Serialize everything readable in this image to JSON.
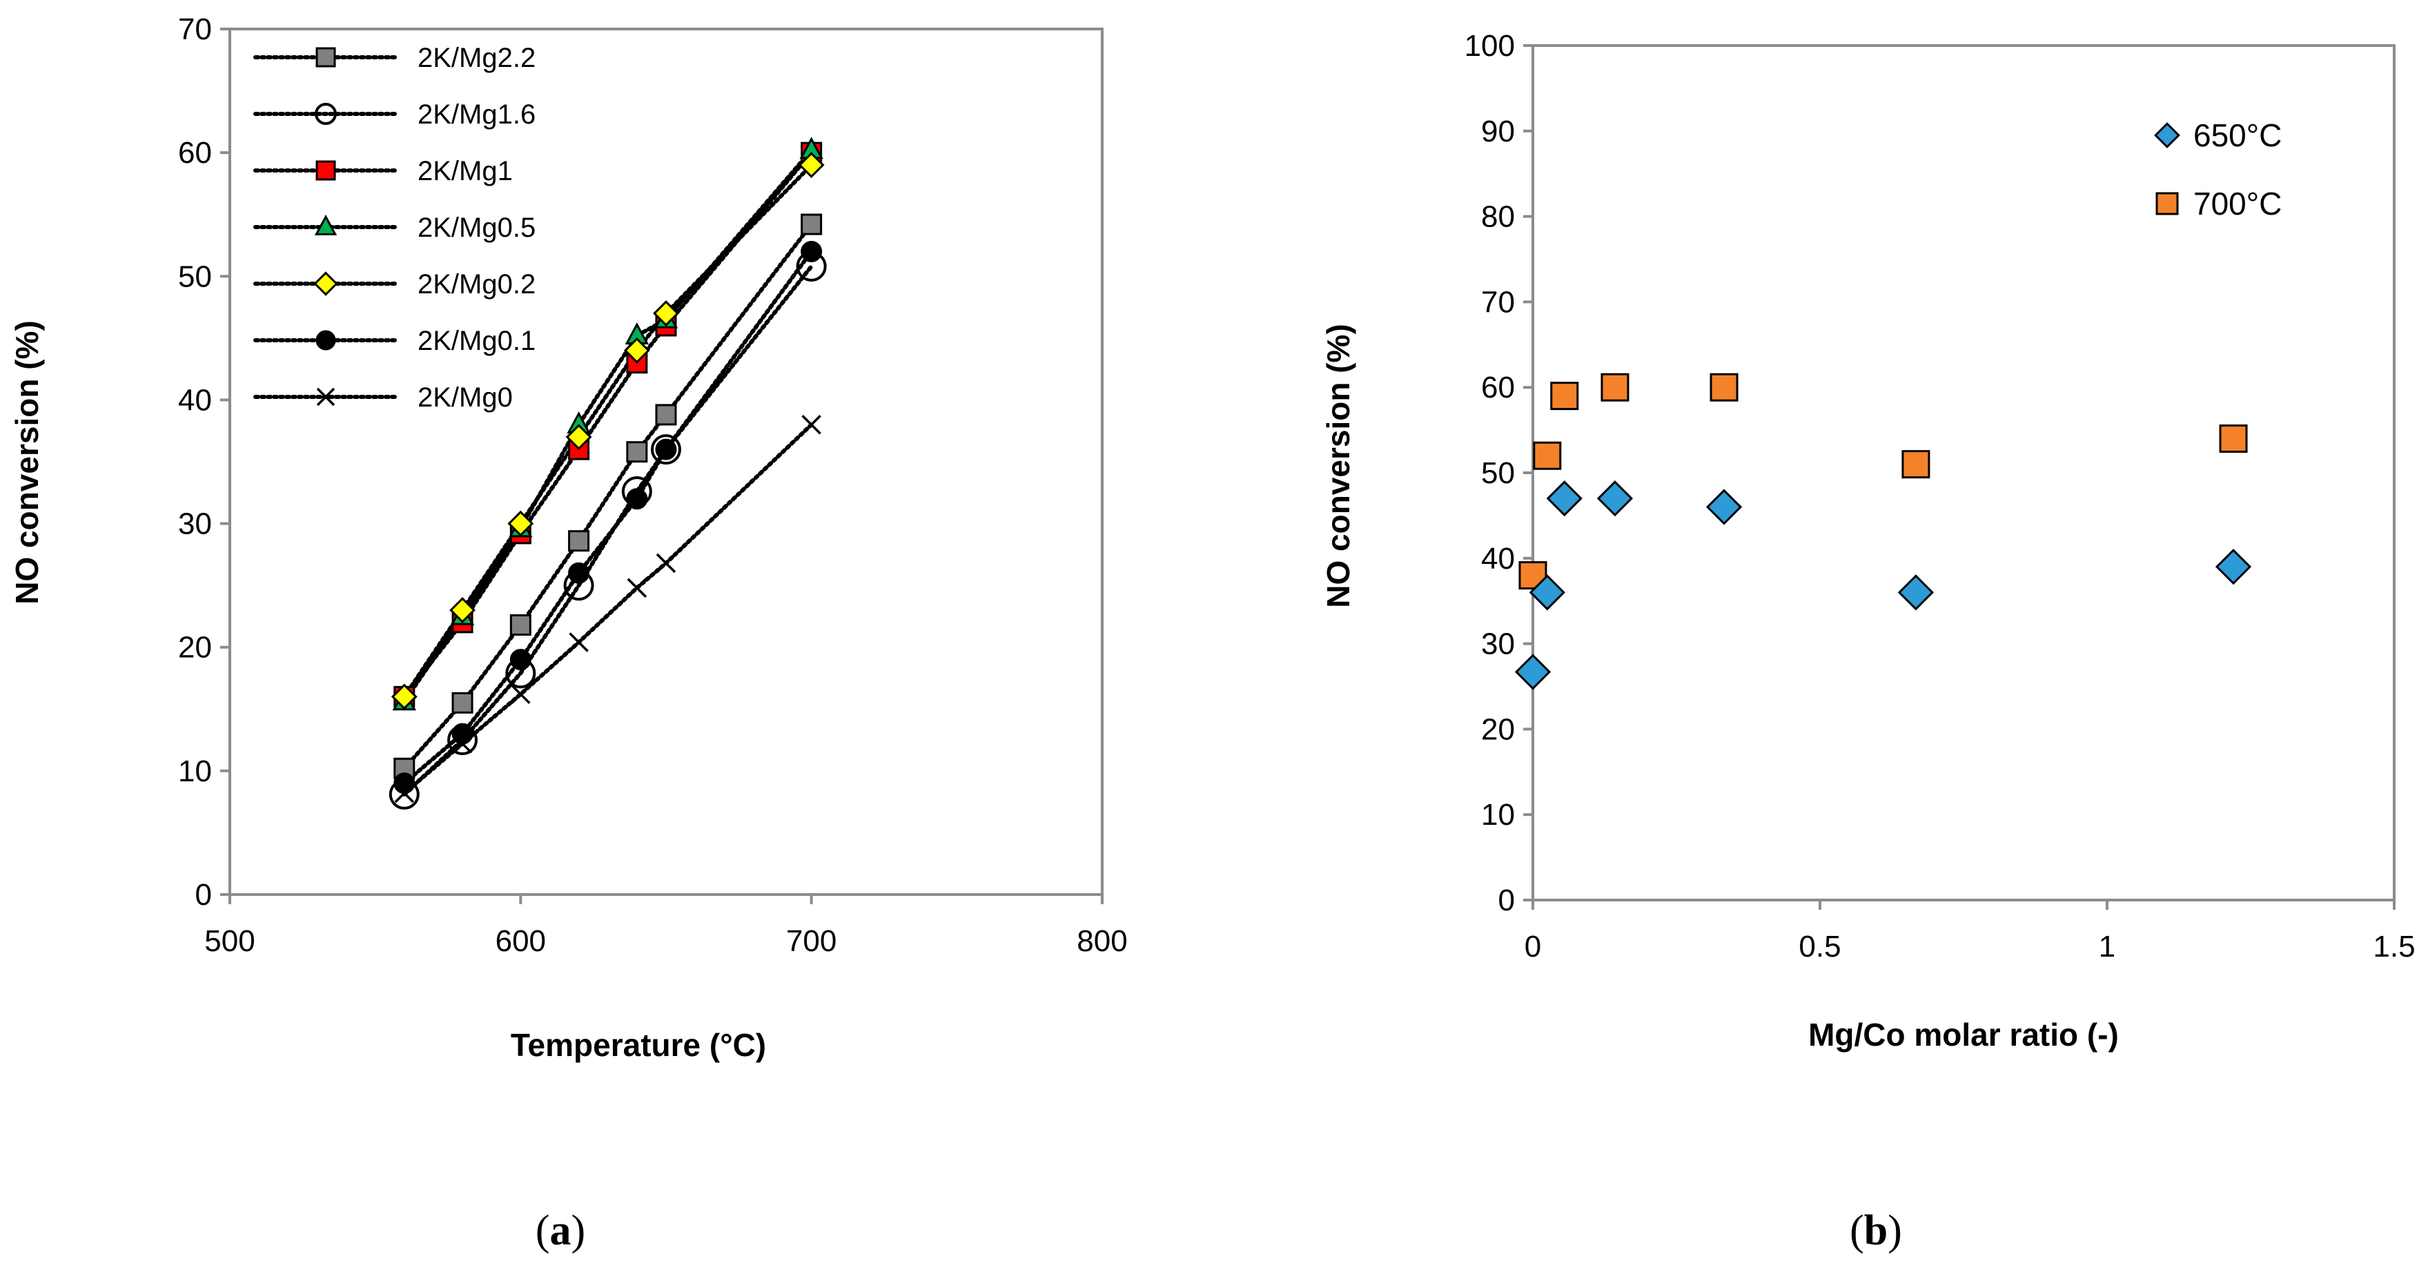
{
  "chart_data": [
    {
      "type": "line",
      "panel_label": "a",
      "xlabel": "Temperature (°C)",
      "ylabel": "NO conversion (%)",
      "xlim": [
        500,
        800
      ],
      "ylim": [
        0,
        70
      ],
      "xticks": [
        500,
        600,
        700,
        800
      ],
      "yticks": [
        0,
        10,
        20,
        30,
        40,
        50,
        60,
        70
      ],
      "legend_position": "top-left",
      "series": [
        {
          "name": "2K/Mg2.2",
          "marker": "square",
          "color": "#808080",
          "x": [
            560,
            580,
            600,
            620,
            640,
            650,
            700
          ],
          "y": [
            10.2,
            15.5,
            21.8,
            28.6,
            35.8,
            38.8,
            54.2
          ]
        },
        {
          "name": "2K/Mg1.6",
          "marker": "circle-open",
          "color": "#ffffff",
          "x": [
            560,
            580,
            600,
            620,
            640,
            650,
            700
          ],
          "y": [
            8.1,
            12.5,
            17.9,
            25.0,
            32.6,
            36.0,
            50.8
          ]
        },
        {
          "name": "2K/Mg1",
          "marker": "square",
          "color": "#ff0000",
          "x": [
            560,
            580,
            600,
            620,
            640,
            650,
            700
          ],
          "y": [
            16.0,
            22.0,
            29.2,
            36.0,
            43.0,
            46.0,
            60.0
          ]
        },
        {
          "name": "2K/Mg0.5",
          "marker": "triangle",
          "color": "#00b050",
          "x": [
            560,
            580,
            600,
            620,
            640,
            650,
            700
          ],
          "y": [
            15.6,
            22.5,
            29.6,
            38.0,
            45.2,
            46.5,
            60.2
          ]
        },
        {
          "name": "2K/Mg0.2",
          "marker": "diamond",
          "color": "#ffff00",
          "x": [
            560,
            580,
            600,
            620,
            640,
            650,
            700
          ],
          "y": [
            16.0,
            23.0,
            30.0,
            37.0,
            44.0,
            47.0,
            59.0
          ]
        },
        {
          "name": "2K/Mg0.1",
          "marker": "circle",
          "color": "#000000",
          "x": [
            560,
            580,
            600,
            620,
            640,
            650,
            700
          ],
          "y": [
            9.0,
            13.0,
            19.0,
            26.0,
            32.0,
            36.0,
            52.0
          ]
        },
        {
          "name": "2K/Mg0",
          "marker": "x",
          "color": "#000000",
          "x": [
            560,
            580,
            600,
            620,
            640,
            650,
            700
          ],
          "y": [
            8.2,
            12.2,
            16.2,
            20.4,
            24.8,
            26.8,
            38.0
          ]
        }
      ]
    },
    {
      "type": "scatter",
      "panel_label": "b",
      "xlabel": "Mg/Co molar ratio (-)",
      "ylabel": "NO conversion (%)",
      "xlim": [
        0,
        1.5
      ],
      "ylim": [
        0,
        100
      ],
      "xticks": [
        "0",
        "0.5",
        "1",
        "1.5"
      ],
      "yticks": [
        0,
        10,
        20,
        30,
        40,
        50,
        60,
        70,
        80,
        90,
        100
      ],
      "legend_position": "top-right",
      "series": [
        {
          "name": "650°C",
          "marker": "diamond",
          "color": "#2e9bd6",
          "x": [
            0,
            0.025,
            0.055,
            0.143,
            0.333,
            0.667,
            1.22
          ],
          "y": [
            26.7,
            36.0,
            47.0,
            47.0,
            46.0,
            36.0,
            39.0
          ]
        },
        {
          "name": "700°C",
          "marker": "square",
          "color": "#f4822a",
          "x": [
            0,
            0.025,
            0.055,
            0.143,
            0.333,
            0.667,
            1.22
          ],
          "y": [
            38.0,
            52.0,
            59.0,
            60.0,
            60.0,
            51.0,
            54.0
          ]
        }
      ]
    }
  ]
}
